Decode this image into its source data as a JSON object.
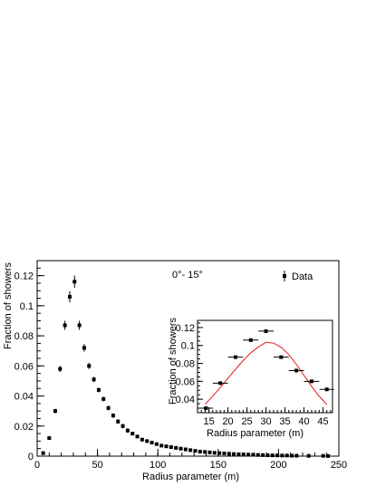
{
  "chart_data": [
    {
      "type": "scatter",
      "xlabel": "Radius parameter (m)",
      "ylabel": "Fraction of showers",
      "annotation": "0°- 15°",
      "legend": {
        "entries": [
          "Data"
        ],
        "placement": "top-right"
      },
      "xlim": [
        0,
        250
      ],
      "ylim": [
        0,
        0.13
      ],
      "xticks": [
        "0",
        "50",
        "100",
        "150",
        "200",
        "250"
      ],
      "yticks": [
        "0",
        "0.02",
        "0.04",
        "0.06",
        "0.08",
        "0.1",
        "0.12"
      ],
      "series": [
        {
          "name": "Data",
          "x": [
            5,
            10,
            15,
            19,
            23,
            27,
            31,
            35,
            39,
            43,
            47,
            51,
            55,
            59,
            63,
            67,
            71,
            75,
            79,
            83,
            87,
            91,
            95,
            99,
            103,
            107,
            111,
            115,
            119,
            123,
            127,
            131,
            135,
            139,
            143,
            147,
            151,
            155,
            159,
            163,
            167,
            171,
            175,
            179,
            183,
            187,
            191,
            195,
            199,
            203,
            207,
            211,
            215,
            225,
            237,
            241
          ],
          "y": [
            0.002,
            0.012,
            0.03,
            0.058,
            0.087,
            0.106,
            0.116,
            0.087,
            0.072,
            0.06,
            0.051,
            0.044,
            0.038,
            0.032,
            0.027,
            0.023,
            0.02,
            0.017,
            0.015,
            0.013,
            0.011,
            0.01,
            0.009,
            0.008,
            0.007,
            0.0065,
            0.006,
            0.0055,
            0.005,
            0.0045,
            0.004,
            0.0035,
            0.003,
            0.0028,
            0.0025,
            0.0022,
            0.002,
            0.0018,
            0.0016,
            0.0014,
            0.0012,
            0.0011,
            0.001,
            0.0009,
            0.0008,
            0.0007,
            0.0006,
            0.0005,
            0.0005,
            0.0004,
            0.0004,
            0.0003,
            0.0003,
            0.0002,
            0.0002,
            0.0001
          ],
          "color": "#000000"
        }
      ],
      "grid": false
    },
    {
      "type": "scatter",
      "xlabel": "Radius parameter (m)",
      "ylabel": "Fraction of showers",
      "xlim": [
        12,
        47.5
      ],
      "ylim": [
        0.025,
        0.128
      ],
      "xticks": [
        "15",
        "20",
        "25",
        "30",
        "35",
        "40",
        "45"
      ],
      "yticks": [
        "0.04",
        "0.06",
        "0.08",
        "0.1",
        "0.12"
      ],
      "series": [
        {
          "name": "Data",
          "x": [
            14.2,
            18.0,
            22.0,
            26.0,
            30.0,
            34.0,
            38.0,
            42.0,
            46.0
          ],
          "y": [
            0.03,
            0.058,
            0.087,
            0.106,
            0.116,
            0.087,
            0.072,
            0.06,
            0.051
          ],
          "x_err": [
            1.9,
            2.0,
            2.0,
            2.0,
            2.0,
            2.0,
            2.0,
            2.0,
            1.9
          ],
          "color": "#000000"
        },
        {
          "name": "",
          "type": "line",
          "x": [
            14.0,
            16.0,
            18.0,
            20.0,
            22.0,
            24.0,
            26.0,
            28.0,
            30.0,
            32.0,
            34.0,
            36.0,
            38.0,
            40.0,
            42.0,
            44.0,
            46.0
          ],
          "y": [
            0.0345,
            0.0435,
            0.0532,
            0.0633,
            0.0735,
            0.0832,
            0.0918,
            0.0984,
            0.1035,
            0.1027,
            0.098,
            0.0898,
            0.079,
            0.0668,
            0.0545,
            0.0433,
            0.0342
          ],
          "color": "#e41a1c"
        }
      ],
      "grid": false
    }
  ]
}
